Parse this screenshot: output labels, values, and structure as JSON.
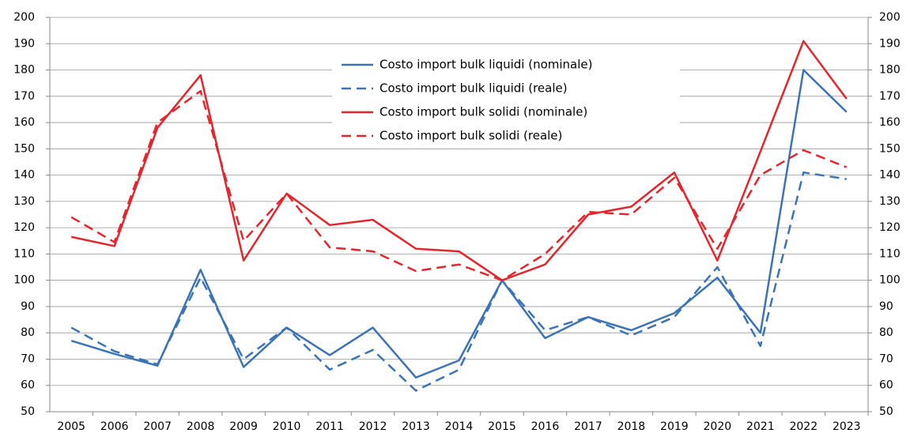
{
  "chart_data": {
    "type": "line",
    "categories": [
      "2005",
      "2006",
      "2007",
      "2008",
      "2009",
      "2010",
      "2011",
      "2012",
      "2013",
      "2014",
      "2015",
      "2016",
      "2017",
      "2018",
      "2019",
      "2020",
      "2021",
      "2022",
      "2023"
    ],
    "series": [
      {
        "name": "Costo import bulk liquidi (nominale)",
        "color": "#3b73b5",
        "dash": false,
        "values": [
          77,
          72,
          67.5,
          104,
          67,
          82,
          71.5,
          82,
          63,
          69.5,
          100,
          78,
          86,
          81,
          87.5,
          101,
          80,
          180,
          164
        ]
      },
      {
        "name": "Costo import bulk liquidi (reale)",
        "color": "#3b73b5",
        "dash": true,
        "values": [
          82,
          73,
          68,
          101,
          70,
          82,
          66,
          73.5,
          58,
          66,
          100,
          81,
          86,
          79,
          86,
          105,
          75,
          141,
          138.5
        ]
      },
      {
        "name": "Costo import bulk solidi (nominale)",
        "color": "#e3262d",
        "dash": false,
        "values": [
          116.5,
          113,
          158,
          178,
          107.5,
          133,
          121,
          123,
          112,
          111,
          100,
          106,
          125,
          128,
          141,
          107.5,
          149,
          191,
          169
        ]
      },
      {
        "name": "Costo import bulk solidi (reale)",
        "color": "#e3262d",
        "dash": true,
        "values": [
          124,
          114.5,
          160,
          172,
          115,
          133,
          112.5,
          111,
          103.5,
          106,
          100,
          110,
          126,
          125,
          139,
          112,
          140,
          149.5,
          143
        ]
      }
    ],
    "ylim": [
      50,
      200
    ],
    "yticks": [
      50,
      60,
      70,
      80,
      90,
      100,
      110,
      120,
      130,
      140,
      150,
      160,
      170,
      180,
      190,
      200
    ],
    "y2lim": [
      50,
      200
    ],
    "y2ticks": [
      50,
      60,
      70,
      80,
      90,
      100,
      110,
      120,
      130,
      140,
      150,
      160,
      170,
      180,
      190,
      200
    ],
    "grid": true
  }
}
